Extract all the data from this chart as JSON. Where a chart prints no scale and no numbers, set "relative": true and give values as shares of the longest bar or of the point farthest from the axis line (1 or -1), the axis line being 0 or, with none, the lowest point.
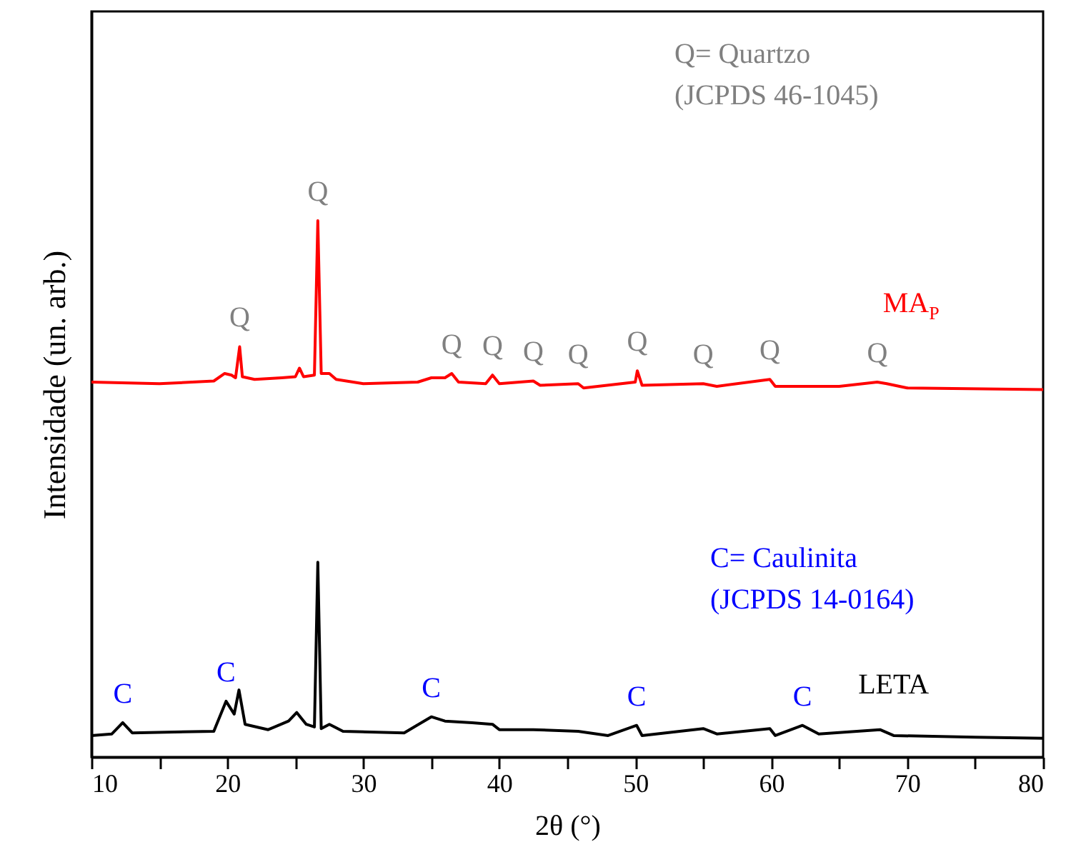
{
  "chart_data": {
    "type": "line",
    "relative": true,
    "xlabel": "2θ (°)",
    "ylabel": "Intensidade (un. arb.)",
    "xlim": [
      10,
      80
    ],
    "xticks": [
      10,
      {
        "value": 15,
        "label": null
      },
      20,
      {
        "value": 25,
        "label": null
      },
      30,
      {
        "value": 35,
        "label": null
      },
      40,
      {
        "value": 45,
        "label": null
      },
      50,
      {
        "value": 55,
        "label": null
      },
      60,
      {
        "value": 65,
        "label": null
      },
      70,
      {
        "value": 75,
        "label": null
      },
      80
    ],
    "grid": false,
    "marker": "none",
    "line_style": "solid",
    "series": [
      {
        "name": "MA$_{P}$",
        "color": "#ff0000",
        "x": [
          10,
          15,
          19,
          19.8,
          20.3,
          20.6,
          20.9,
          21.1,
          22,
          24,
          25,
          25.3,
          25.6,
          26.4,
          26.65,
          26.9,
          27.5,
          28,
          30,
          34,
          35,
          36,
          36.5,
          37,
          39,
          39.5,
          40,
          42.5,
          43,
          45.8,
          46.2,
          50,
          50.15,
          50.5,
          55,
          56,
          59.9,
          60.3,
          65,
          67.8,
          68.5,
          70,
          80
        ],
        "values": [
          0.699,
          0.696,
          0.701,
          0.715,
          0.712,
          0.707,
          0.765,
          0.709,
          0.704,
          0.707,
          0.709,
          0.725,
          0.709,
          0.712,
          1.0,
          0.715,
          0.715,
          0.704,
          0.696,
          0.699,
          0.707,
          0.707,
          0.715,
          0.699,
          0.696,
          0.712,
          0.696,
          0.701,
          0.693,
          0.696,
          0.688,
          0.699,
          0.72,
          0.693,
          0.696,
          0.691,
          0.704,
          0.691,
          0.691,
          0.699,
          0.696,
          0.688,
          0.685
        ]
      },
      {
        "name": "LETA",
        "color": "#000000",
        "x": [
          10,
          11.5,
          12.3,
          13,
          19,
          19.9,
          20.5,
          20.85,
          21.3,
          23,
          24.5,
          25.1,
          25.8,
          26.4,
          26.65,
          26.9,
          27.5,
          28.5,
          33,
          35,
          36,
          38,
          39.5,
          40,
          42.5,
          45.8,
          48,
          50.1,
          50.5,
          55,
          56,
          59.9,
          60.3,
          62.3,
          63.5,
          68,
          69,
          75,
          80
        ],
        "values": [
          0.04,
          0.043,
          0.064,
          0.045,
          0.048,
          0.104,
          0.08,
          0.125,
          0.061,
          0.051,
          0.067,
          0.083,
          0.061,
          0.056,
          0.363,
          0.053,
          0.061,
          0.048,
          0.045,
          0.075,
          0.067,
          0.064,
          0.061,
          0.051,
          0.051,
          0.048,
          0.04,
          0.059,
          0.04,
          0.053,
          0.043,
          0.053,
          0.04,
          0.059,
          0.043,
          0.051,
          0.04,
          0.037,
          0.035
        ]
      }
    ],
    "annotations": [
      {
        "text": "Q",
        "x": 20.9,
        "y": 0.765
      },
      {
        "text": "Q",
        "x": 26.65,
        "y": 1.0
      },
      {
        "text": "Q",
        "x": 36.5,
        "y": 0.715
      },
      {
        "text": "Q",
        "x": 39.5,
        "y": 0.712
      },
      {
        "text": "Q",
        "x": 42.5,
        "y": 0.701
      },
      {
        "text": "Q",
        "x": 45.8,
        "y": 0.696
      },
      {
        "text": "Q",
        "x": 50.15,
        "y": 0.72
      },
      {
        "text": "Q",
        "x": 55,
        "y": 0.696
      },
      {
        "text": "Q",
        "x": 59.9,
        "y": 0.704
      },
      {
        "text": "Q",
        "x": 67.8,
        "y": 0.699
      },
      {
        "text": "C",
        "x": 12.3,
        "y": 0.064
      },
      {
        "text": "C",
        "x": 19.9,
        "y": 0.104
      },
      {
        "text": "C",
        "x": 35,
        "y": 0.075
      },
      {
        "text": "C",
        "x": 50.1,
        "y": 0.059
      },
      {
        "text": "C",
        "x": 62.3,
        "y": 0.059
      },
      "Q= Quartzo",
      "(JCPDS 46-1045)",
      "C= Caulinita",
      "(JCPDS 14-0164)"
    ]
  }
}
